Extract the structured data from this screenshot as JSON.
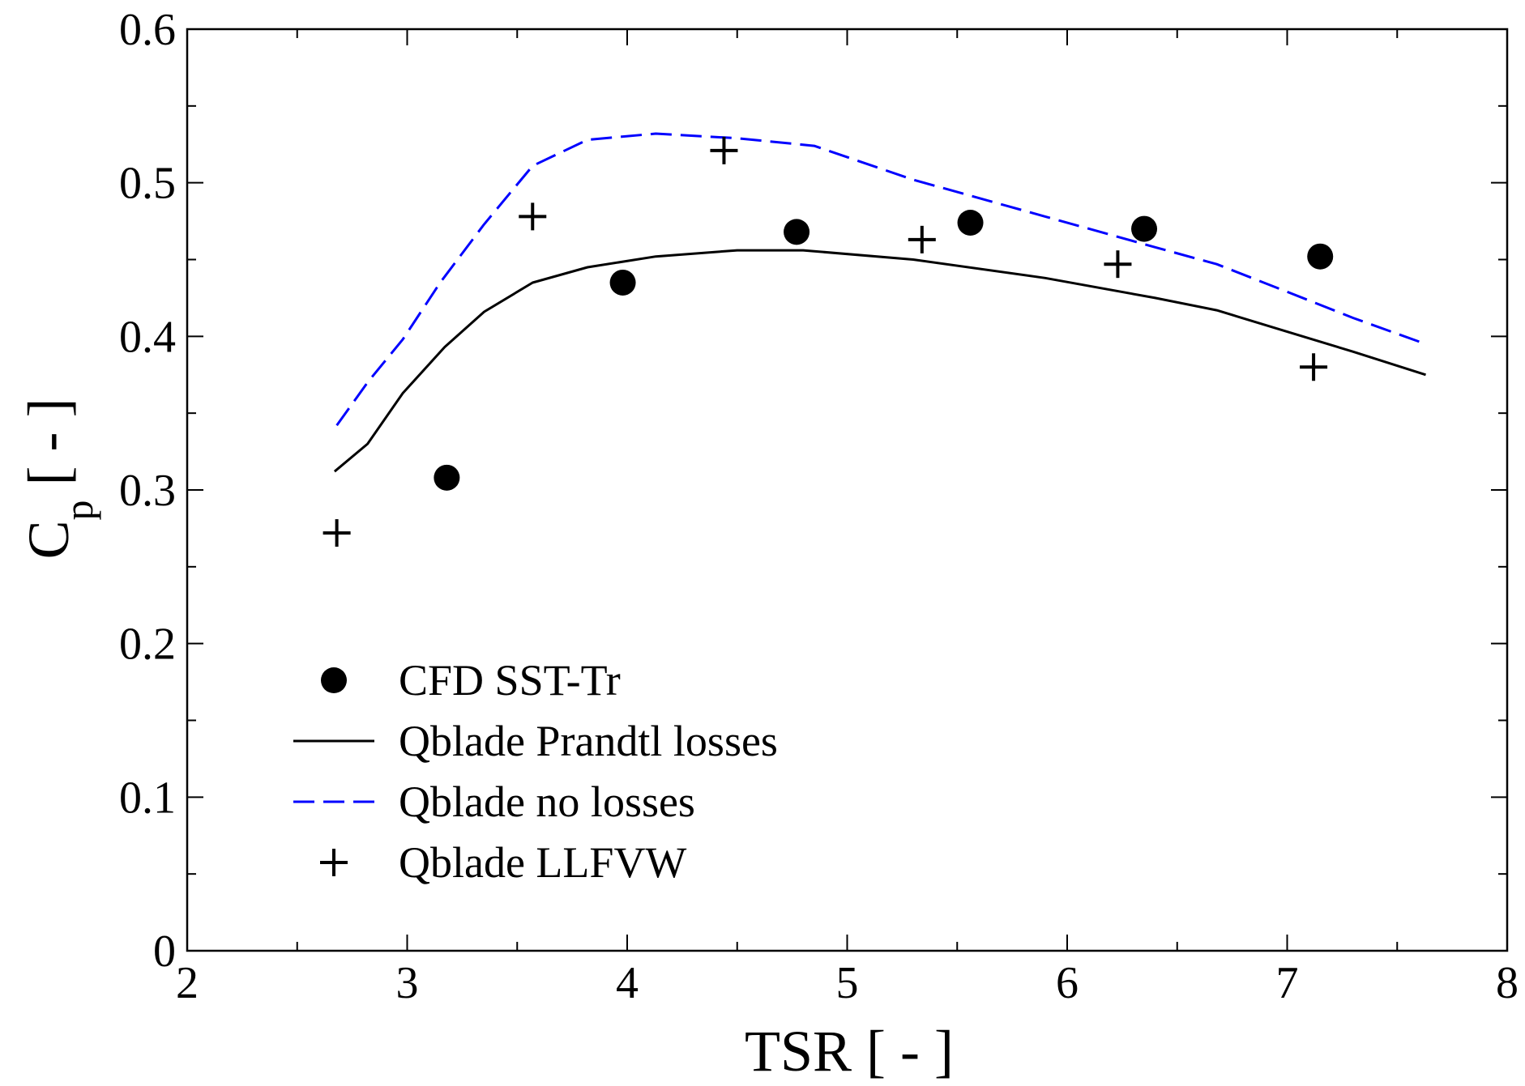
{
  "chart_data": {
    "type": "line",
    "title": "",
    "xlabel": "TSR [ - ]",
    "ylabel": {
      "main": "C",
      "sub": "p",
      "unit": " [ - ]"
    },
    "xlim": [
      2,
      8
    ],
    "ylim": [
      0,
      0.6
    ],
    "x_ticks": [
      "2",
      "3",
      "4",
      "5",
      "6",
      "7",
      "8"
    ],
    "y_ticks": [
      "0",
      "0.1",
      "0.2",
      "0.3",
      "0.4",
      "0.5",
      "0.6"
    ],
    "grid": false,
    "legend_position": "bottom-left",
    "series": [
      {
        "name": "CFD SST-Tr",
        "kind": "scatter",
        "marker": "circle",
        "color": "#000000",
        "points": [
          [
            3.18,
            0.308
          ],
          [
            3.98,
            0.435
          ],
          [
            4.77,
            0.468
          ],
          [
            5.56,
            0.474
          ],
          [
            6.35,
            0.47
          ],
          [
            7.15,
            0.452
          ]
        ]
      },
      {
        "name": "Qblade Prandtl losses",
        "kind": "line",
        "dash": "solid",
        "color": "#000000",
        "points": [
          [
            2.67,
            0.312
          ],
          [
            2.82,
            0.33
          ],
          [
            2.98,
            0.363
          ],
          [
            3.17,
            0.393
          ],
          [
            3.35,
            0.416
          ],
          [
            3.57,
            0.435
          ],
          [
            3.82,
            0.445
          ],
          [
            4.13,
            0.452
          ],
          [
            4.5,
            0.456
          ],
          [
            4.8,
            0.456
          ],
          [
            5.3,
            0.45
          ],
          [
            5.9,
            0.438
          ],
          [
            6.4,
            0.425
          ],
          [
            6.68,
            0.417
          ],
          [
            7.0,
            0.403
          ],
          [
            7.3,
            0.39
          ],
          [
            7.63,
            0.375
          ]
        ]
      },
      {
        "name": "Qblade no losses",
        "kind": "line",
        "dash": "dashed",
        "color": "#0000ff",
        "points": [
          [
            2.68,
            0.342
          ],
          [
            2.82,
            0.37
          ],
          [
            2.98,
            0.398
          ],
          [
            3.15,
            0.435
          ],
          [
            3.35,
            0.473
          ],
          [
            3.57,
            0.511
          ],
          [
            3.82,
            0.528
          ],
          [
            4.13,
            0.532
          ],
          [
            4.5,
            0.529
          ],
          [
            4.85,
            0.524
          ],
          [
            5.3,
            0.502
          ],
          [
            5.9,
            0.478
          ],
          [
            6.4,
            0.458
          ],
          [
            6.68,
            0.447
          ],
          [
            7.0,
            0.429
          ],
          [
            7.3,
            0.412
          ],
          [
            7.63,
            0.395
          ]
        ]
      },
      {
        "name": "Qblade LLFVW",
        "kind": "scatter",
        "marker": "plus",
        "color": "#000000",
        "points": [
          [
            2.68,
            0.272
          ],
          [
            3.57,
            0.478
          ],
          [
            4.44,
            0.521
          ],
          [
            5.34,
            0.463
          ],
          [
            6.23,
            0.447
          ],
          [
            7.12,
            0.38
          ]
        ]
      }
    ]
  }
}
